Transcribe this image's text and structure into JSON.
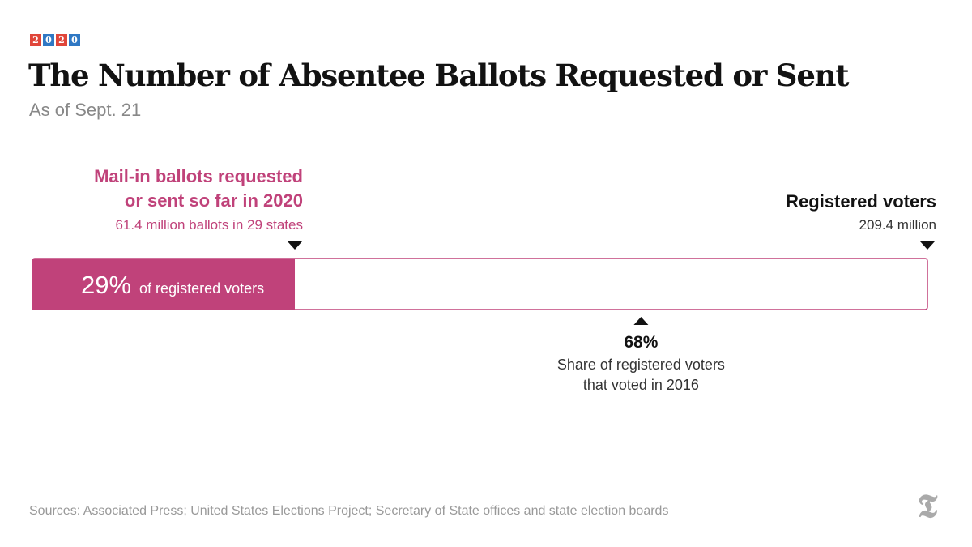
{
  "badge": {
    "digits": [
      "2",
      "0",
      "2",
      "0"
    ],
    "colors": [
      "#e0463a",
      "#2f78c4",
      "#e0463a",
      "#2f78c4"
    ]
  },
  "header": {
    "title": "The Number of Absentee Ballots Requested or Sent",
    "subtitle": "As of Sept. 21"
  },
  "colors": {
    "accent": "#c0427a",
    "text": "#121212",
    "muted": "#888888"
  },
  "chart_data": {
    "type": "bar",
    "orientation": "horizontal",
    "unit": "million",
    "total": {
      "label": "Registered voters",
      "value": 209.4,
      "value_text": "209.4 million"
    },
    "filled": {
      "label": "Mail-in ballots requested or sent so far in 2020",
      "label_lines": [
        "Mail-in ballots requested",
        "or sent so far in 2020"
      ],
      "value": 61.4,
      "detail_text": "61.4 million ballots in 29 states",
      "percent": 29,
      "percent_text": "29%",
      "percent_label": "of registered voters"
    },
    "reference_marker": {
      "percent": 68,
      "percent_text": "68%",
      "label_lines": [
        "Share of registered voters",
        "that voted in 2016"
      ]
    }
  },
  "footer": {
    "source": "Sources: Associated Press; United States Elections Project; Secretary of State offices and state election boards",
    "logo_glyph": "𝕿"
  }
}
